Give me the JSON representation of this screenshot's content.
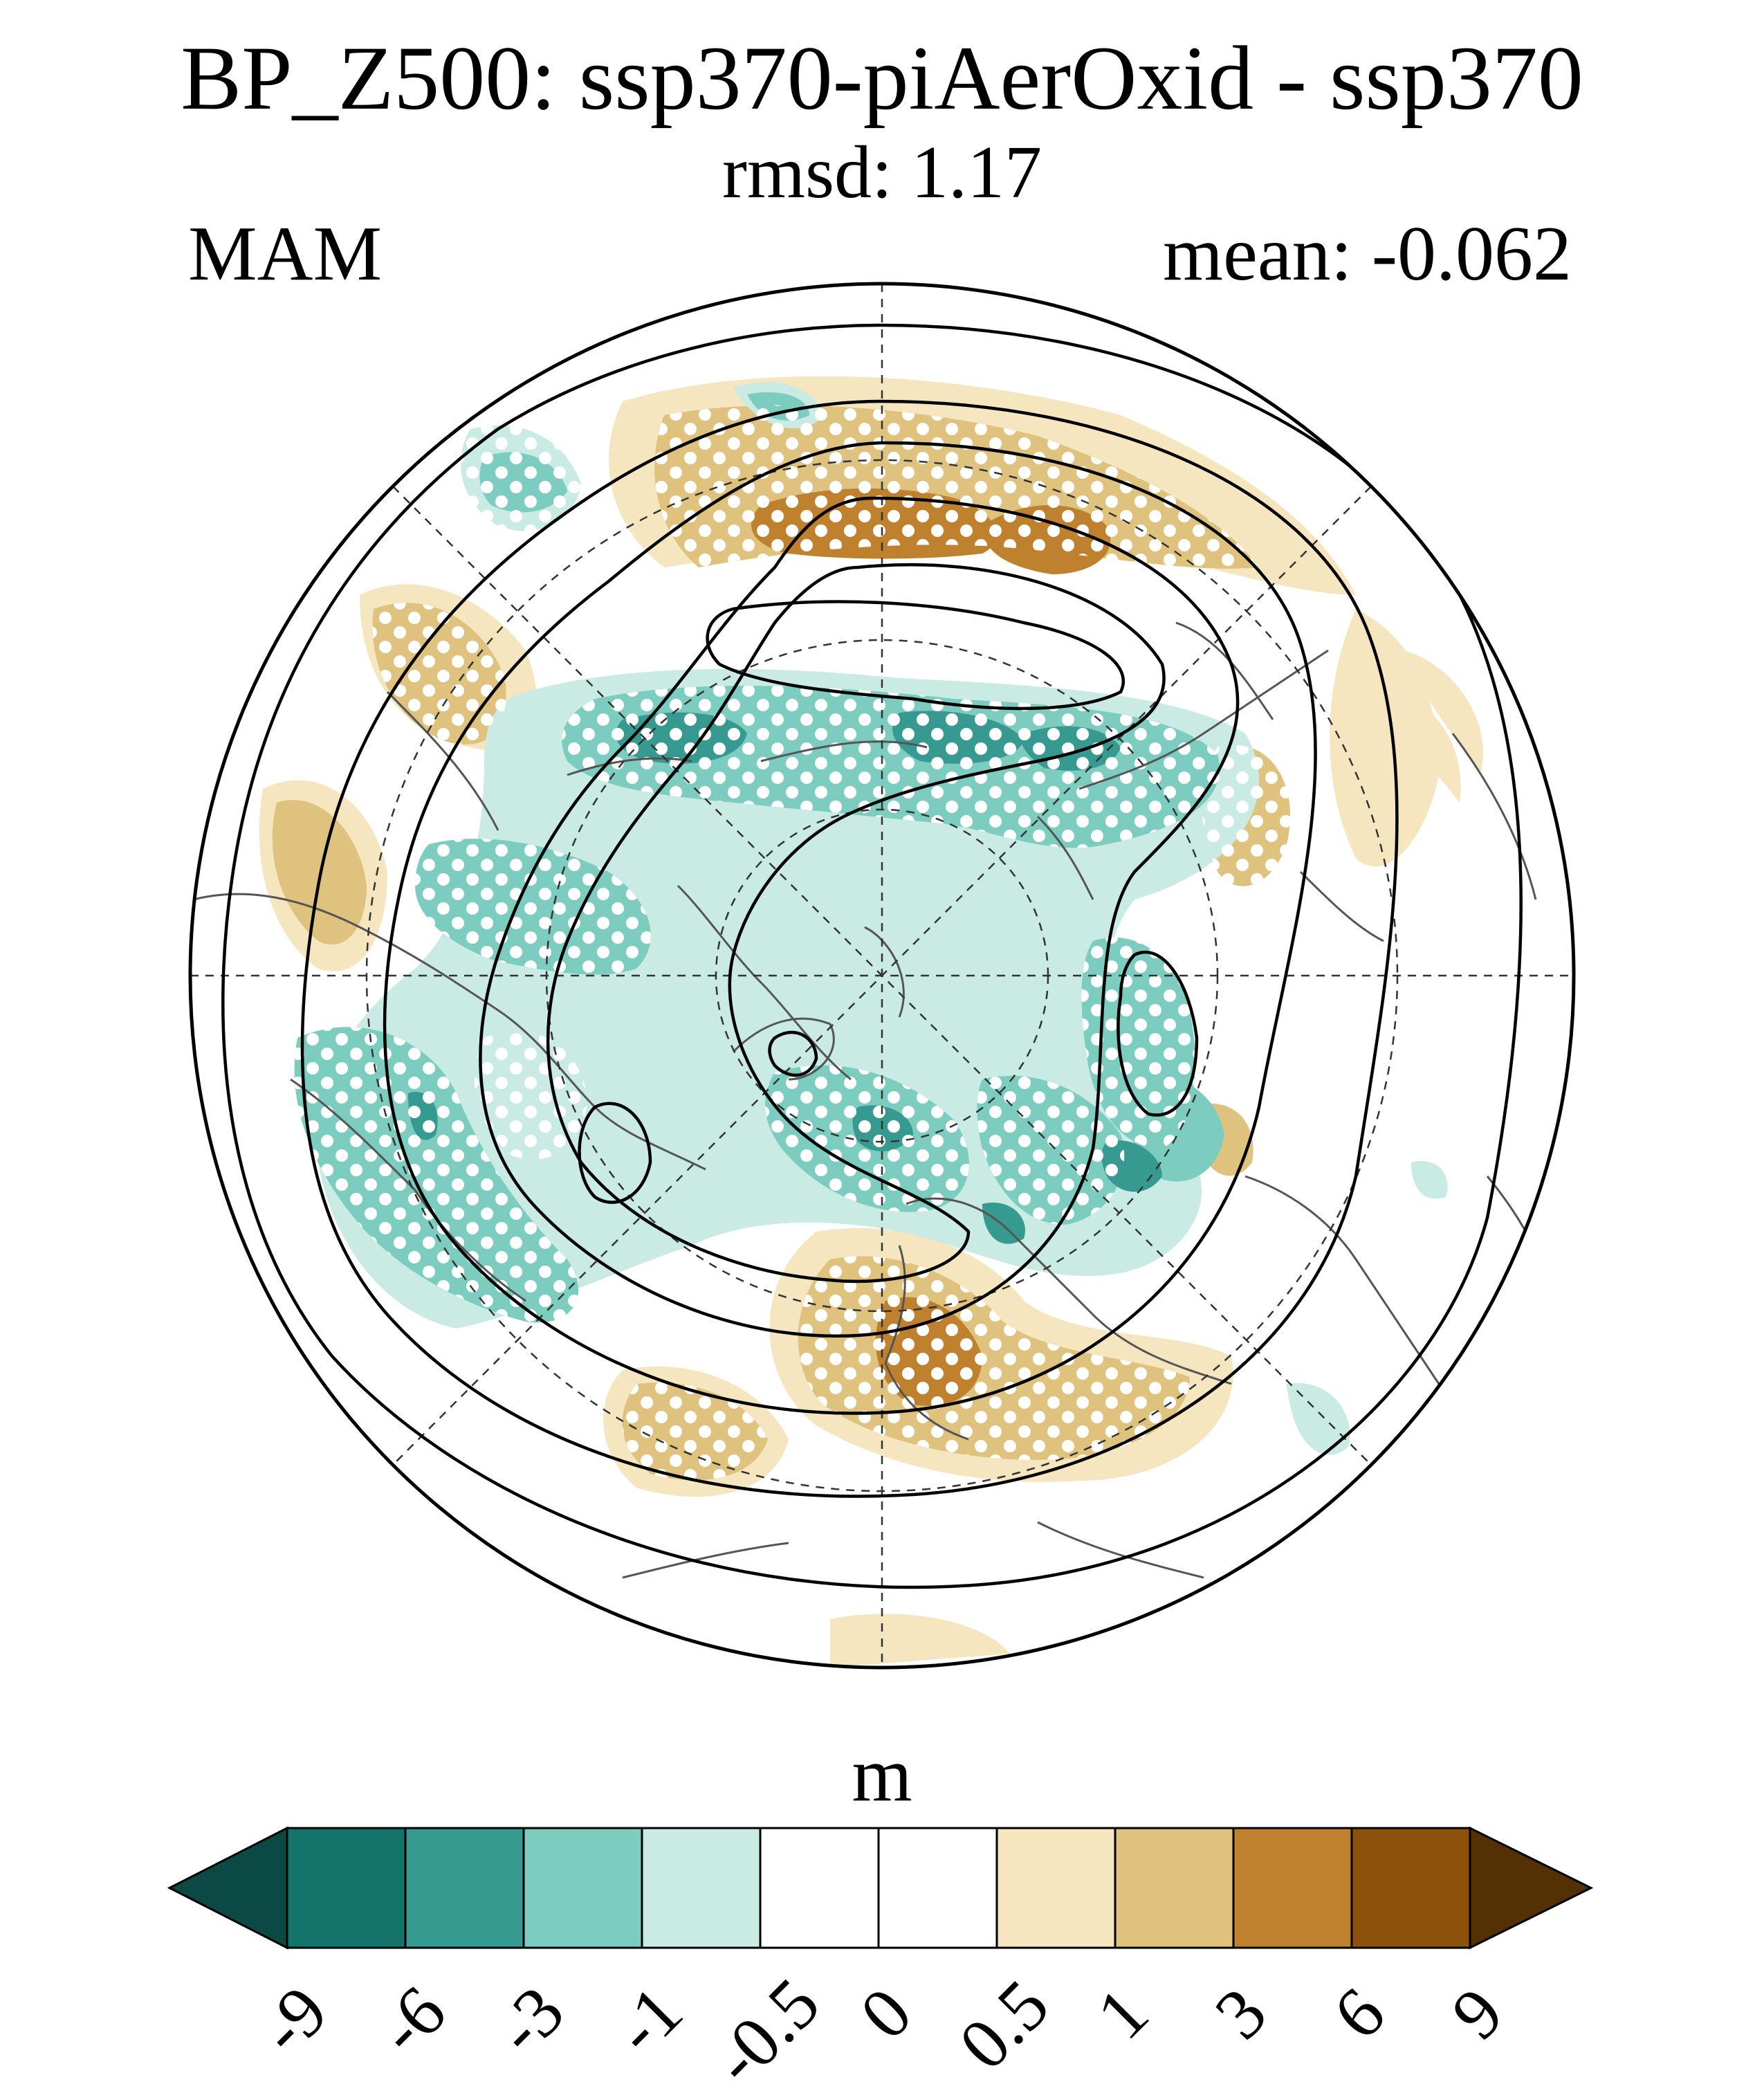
{
  "header": {
    "title": "BP_Z500: ssp370-piAerOxid - ssp370",
    "subtitle": "rmsd: 1.17",
    "season": "MAM",
    "mean": "mean: -0.062"
  },
  "map": {
    "projection": "north polar stereographic",
    "features": [
      "coastlines",
      "country borders",
      "lat/lon grid (dashed)",
      "climatology contours (black)",
      "significance stippling (white dots)"
    ]
  },
  "colorbar": {
    "units": "m",
    "levels": [
      "-9",
      "-6",
      "-3",
      "-1",
      "-0.5",
      "0",
      "0.5",
      "1",
      "3",
      "6",
      "9"
    ],
    "colors": [
      "#0b4a44",
      "#14736b",
      "#369a90",
      "#7ccdbf",
      "#c9ebe3",
      "#ffffff",
      "#ffffff",
      "#f6e6c0",
      "#dfc27d",
      "#bf812d",
      "#8c510a",
      "#543005"
    ]
  }
}
